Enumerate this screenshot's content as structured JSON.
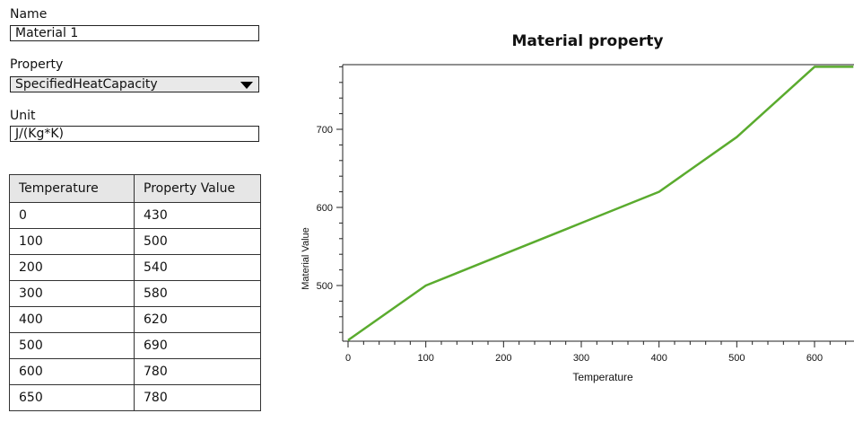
{
  "form": {
    "name_label": "Name",
    "name_value": "Material 1",
    "property_label": "Property",
    "property_value": "SpecifiedHeatCapacity",
    "unit_label": "Unit",
    "unit_value": "J/(Kg*K)"
  },
  "table": {
    "headers": [
      "Temperature",
      "Property Value"
    ],
    "rows": [
      [
        "0",
        "430"
      ],
      [
        "100",
        "500"
      ],
      [
        "200",
        "540"
      ],
      [
        "300",
        "580"
      ],
      [
        "400",
        "620"
      ],
      [
        "500",
        "690"
      ],
      [
        "600",
        "780"
      ],
      [
        "650",
        "780"
      ]
    ]
  },
  "chart_data": {
    "type": "line",
    "title": "Material property",
    "xlabel": "Temperature",
    "ylabel": "Material Value",
    "x": [
      0,
      100,
      200,
      300,
      400,
      500,
      600,
      650
    ],
    "series": [
      {
        "values": [
          430,
          500,
          540,
          580,
          620,
          690,
          780,
          780
        ]
      }
    ],
    "xticks": [
      0,
      100,
      200,
      300,
      400,
      500,
      600
    ],
    "yticks": [
      500,
      600,
      700
    ],
    "xlim": [
      0,
      650
    ],
    "ylim": [
      430,
      780
    ],
    "grid": false,
    "line_color": "#5aab2e"
  }
}
